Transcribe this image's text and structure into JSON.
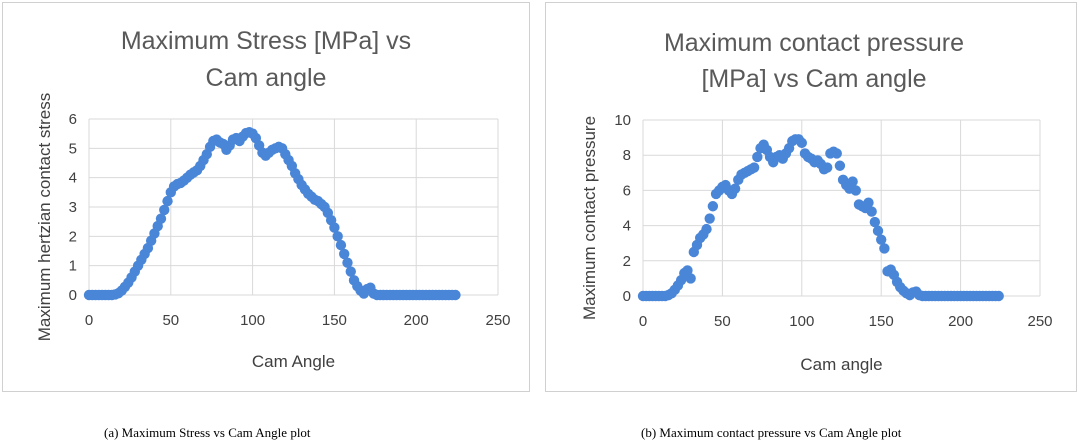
{
  "chart_data": [
    {
      "type": "scatter",
      "title_lines": [
        "Maximum Stress [MPa] vs",
        "Cam angle"
      ],
      "xlabel": "Cam Angle",
      "ylabel": "Maximum hertzian contact stress",
      "xlim": [
        0,
        250
      ],
      "ylim": [
        0,
        6
      ],
      "xticks": [
        "0",
        "50",
        "100",
        "150",
        "200",
        "250"
      ],
      "yticks": [
        "0",
        "1",
        "2",
        "3",
        "4",
        "5",
        "6"
      ],
      "grid": true,
      "series": [
        {
          "name": "Maximum Stress",
          "color": "#4a86d8",
          "x": [
            0,
            2,
            4,
            6,
            8,
            10,
            12,
            14,
            16,
            18,
            20,
            22,
            24,
            26,
            28,
            30,
            32,
            34,
            36,
            38,
            40,
            42,
            44,
            46,
            48,
            50,
            52,
            54,
            56,
            58,
            60,
            62,
            64,
            66,
            68,
            70,
            72,
            74,
            76,
            78,
            80,
            82,
            84,
            86,
            88,
            90,
            92,
            94,
            96,
            98,
            100,
            102,
            104,
            106,
            108,
            110,
            112,
            114,
            116,
            118,
            120,
            122,
            124,
            126,
            128,
            130,
            132,
            134,
            136,
            138,
            140,
            142,
            144,
            146,
            148,
            150,
            152,
            154,
            156,
            158,
            160,
            162,
            164,
            166,
            168,
            170,
            172,
            174,
            176,
            178,
            180,
            182,
            184,
            186,
            188,
            190,
            192,
            194,
            196,
            198,
            200,
            202,
            204,
            206,
            208,
            210,
            212,
            214,
            216,
            218,
            220,
            222,
            224
          ],
          "y": [
            0,
            0,
            0,
            0,
            0,
            0,
            0,
            0,
            0.02,
            0.06,
            0.15,
            0.28,
            0.42,
            0.6,
            0.8,
            1.0,
            1.2,
            1.4,
            1.6,
            1.85,
            2.1,
            2.35,
            2.6,
            2.9,
            3.2,
            3.5,
            3.7,
            3.78,
            3.82,
            3.9,
            4.0,
            4.1,
            4.18,
            4.25,
            4.4,
            4.6,
            4.8,
            5.05,
            5.25,
            5.3,
            5.2,
            5.15,
            4.95,
            5.1,
            5.3,
            5.35,
            5.25,
            5.4,
            5.52,
            5.55,
            5.5,
            5.35,
            5.1,
            4.85,
            4.75,
            4.85,
            4.95,
            5.0,
            5.05,
            5.0,
            4.8,
            4.6,
            4.4,
            4.15,
            3.95,
            3.75,
            3.6,
            3.45,
            3.35,
            3.25,
            3.2,
            3.1,
            3.0,
            2.8,
            2.55,
            2.3,
            2.0,
            1.7,
            1.4,
            1.1,
            0.8,
            0.5,
            0.3,
            0.15,
            0.05,
            0.2,
            0.25,
            0.05,
            0,
            0,
            0,
            0,
            0,
            0,
            0,
            0,
            0,
            0,
            0,
            0,
            0,
            0,
            0,
            0,
            0,
            0,
            0,
            0,
            0,
            0,
            0,
            0,
            0
          ]
        }
      ]
    },
    {
      "type": "scatter",
      "title_lines": [
        "Maximum contact pressure",
        "[MPa] vs Cam angle"
      ],
      "xlabel": "Cam angle",
      "ylabel": "Maximum contact pressure",
      "xlim": [
        0,
        250
      ],
      "ylim": [
        0,
        10
      ],
      "xticks": [
        "0",
        "50",
        "100",
        "150",
        "200",
        "250"
      ],
      "yticks": [
        "0",
        "2",
        "4",
        "6",
        "8",
        "10"
      ],
      "grid": true,
      "series": [
        {
          "name": "Maximum contact pressure",
          "color": "#4a86d8",
          "x": [
            0,
            2,
            4,
            6,
            8,
            10,
            12,
            14,
            16,
            18,
            20,
            22,
            24,
            26,
            28,
            30,
            32,
            34,
            36,
            38,
            40,
            42,
            44,
            46,
            48,
            50,
            52,
            54,
            56,
            58,
            60,
            62,
            64,
            66,
            68,
            70,
            72,
            74,
            76,
            78,
            80,
            82,
            84,
            86,
            88,
            90,
            92,
            94,
            96,
            98,
            100,
            102,
            104,
            106,
            108,
            110,
            112,
            114,
            116,
            118,
            120,
            122,
            124,
            126,
            128,
            130,
            132,
            134,
            136,
            138,
            140,
            142,
            144,
            146,
            148,
            150,
            152,
            154,
            156,
            158,
            160,
            162,
            164,
            166,
            168,
            170,
            172,
            174,
            176,
            178,
            180,
            182,
            184,
            186,
            188,
            190,
            192,
            194,
            196,
            198,
            200,
            202,
            204,
            206,
            208,
            210,
            212,
            214,
            216,
            218,
            220,
            222,
            224
          ],
          "y": [
            0,
            0,
            0,
            0,
            0,
            0,
            0,
            0,
            0.05,
            0.15,
            0.35,
            0.6,
            0.9,
            1.3,
            1.45,
            1.0,
            2.5,
            2.9,
            3.3,
            3.5,
            3.8,
            4.4,
            5.1,
            5.8,
            6.0,
            6.2,
            6.3,
            6.0,
            5.8,
            6.1,
            6.6,
            6.9,
            7.0,
            7.1,
            7.2,
            7.3,
            7.9,
            8.4,
            8.6,
            8.3,
            7.9,
            7.6,
            7.9,
            8.0,
            7.8,
            8.1,
            8.4,
            8.8,
            8.9,
            8.9,
            8.7,
            8.1,
            7.9,
            7.8,
            7.6,
            7.7,
            7.5,
            7.2,
            7.3,
            8.1,
            8.2,
            8.1,
            7.4,
            6.6,
            6.3,
            6.1,
            6.5,
            6.0,
            5.2,
            5.1,
            5.0,
            5.3,
            4.8,
            4.2,
            3.7,
            3.2,
            2.7,
            1.4,
            1.5,
            1.2,
            0.8,
            0.5,
            0.3,
            0.15,
            0.05,
            0.2,
            0.25,
            0.05,
            0,
            0,
            0,
            0,
            0,
            0,
            0,
            0,
            0,
            0,
            0,
            0,
            0,
            0,
            0,
            0,
            0,
            0,
            0,
            0,
            0,
            0,
            0,
            0,
            0
          ]
        }
      ]
    }
  ],
  "captions": {
    "a": "(a) Maximum Stress vs Cam Angle plot",
    "b": "(b) Maximum contact pressure vs Cam Angle plot"
  }
}
